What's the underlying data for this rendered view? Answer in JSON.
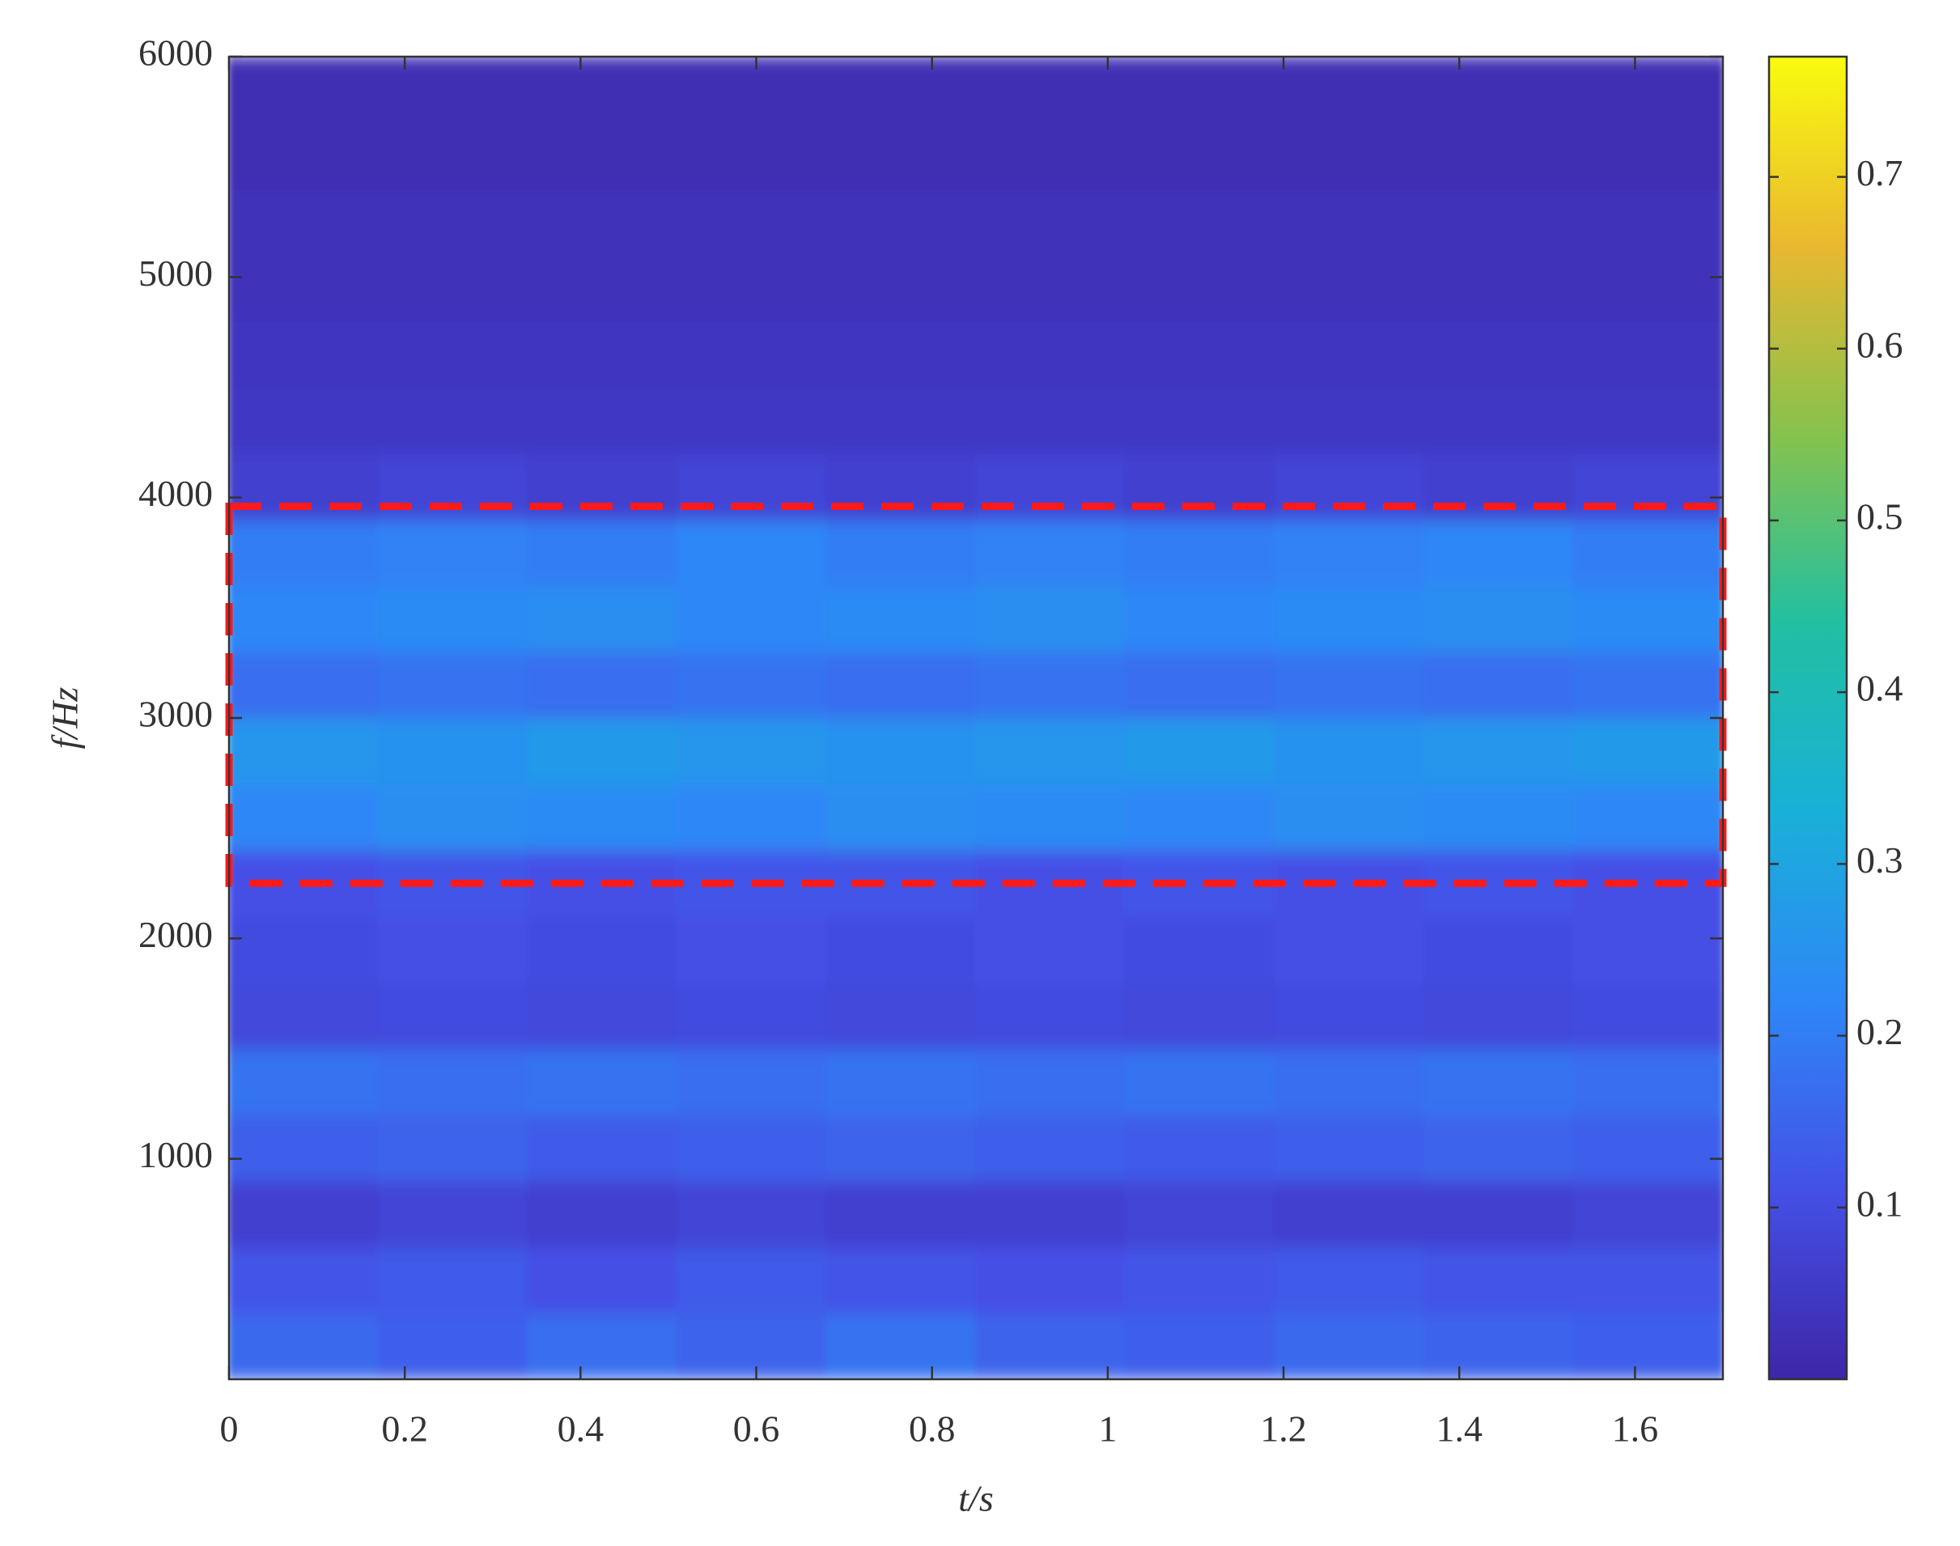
{
  "chart_data": {
    "type": "heatmap",
    "xlabel": "t/s",
    "ylabel": "f/Hz",
    "xlim": [
      0,
      1.7
    ],
    "xticks": [
      0,
      0.2,
      0.4,
      0.6,
      0.8,
      1,
      1.2,
      1.4,
      1.6
    ],
    "ylim": [
      0,
      6000
    ],
    "yticks": [
      1000,
      2000,
      3000,
      4000,
      5000,
      6000
    ],
    "xbins": [
      0,
      0.17,
      0.34,
      0.51,
      0.68,
      0.85,
      1.02,
      1.19,
      1.36,
      1.53,
      1.7
    ],
    "ybins": [
      0,
      300,
      600,
      900,
      1200,
      1500,
      1800,
      2100,
      2400,
      2700,
      3000,
      3300,
      3600,
      3900,
      4200,
      4500,
      4800,
      5100,
      5400,
      5700,
      6000
    ],
    "z": [
      [
        0.16,
        0.14,
        0.17,
        0.15,
        0.18,
        0.15,
        0.14,
        0.16,
        0.15,
        0.14
      ],
      [
        0.12,
        0.13,
        0.11,
        0.13,
        0.12,
        0.11,
        0.12,
        0.13,
        0.12,
        0.12
      ],
      [
        0.07,
        0.08,
        0.07,
        0.08,
        0.07,
        0.07,
        0.08,
        0.07,
        0.07,
        0.08
      ],
      [
        0.14,
        0.15,
        0.13,
        0.14,
        0.15,
        0.14,
        0.13,
        0.14,
        0.15,
        0.14
      ],
      [
        0.18,
        0.17,
        0.18,
        0.17,
        0.18,
        0.17,
        0.18,
        0.17,
        0.18,
        0.17
      ],
      [
        0.09,
        0.1,
        0.09,
        0.1,
        0.09,
        0.1,
        0.09,
        0.1,
        0.09,
        0.1
      ],
      [
        0.1,
        0.11,
        0.1,
        0.11,
        0.1,
        0.11,
        0.1,
        0.11,
        0.1,
        0.11
      ],
      [
        0.11,
        0.12,
        0.11,
        0.12,
        0.12,
        0.11,
        0.12,
        0.11,
        0.12,
        0.11
      ],
      [
        0.22,
        0.24,
        0.23,
        0.22,
        0.24,
        0.23,
        0.22,
        0.24,
        0.23,
        0.22
      ],
      [
        0.26,
        0.25,
        0.27,
        0.26,
        0.25,
        0.26,
        0.27,
        0.25,
        0.26,
        0.27
      ],
      [
        0.17,
        0.18,
        0.17,
        0.18,
        0.17,
        0.18,
        0.17,
        0.18,
        0.17,
        0.18
      ],
      [
        0.22,
        0.23,
        0.24,
        0.22,
        0.23,
        0.24,
        0.22,
        0.23,
        0.24,
        0.23
      ],
      [
        0.2,
        0.21,
        0.2,
        0.22,
        0.2,
        0.21,
        0.2,
        0.21,
        0.22,
        0.2
      ],
      [
        0.07,
        0.08,
        0.07,
        0.08,
        0.07,
        0.08,
        0.07,
        0.08,
        0.07,
        0.08
      ],
      [
        0.05,
        0.05,
        0.05,
        0.05,
        0.05,
        0.05,
        0.05,
        0.05,
        0.05,
        0.05
      ],
      [
        0.04,
        0.04,
        0.04,
        0.04,
        0.04,
        0.04,
        0.04,
        0.04,
        0.04,
        0.04
      ],
      [
        0.03,
        0.03,
        0.03,
        0.03,
        0.03,
        0.03,
        0.03,
        0.03,
        0.03,
        0.03
      ],
      [
        0.03,
        0.03,
        0.03,
        0.03,
        0.03,
        0.03,
        0.03,
        0.03,
        0.03,
        0.03
      ],
      [
        0.02,
        0.02,
        0.02,
        0.02,
        0.02,
        0.02,
        0.02,
        0.02,
        0.02,
        0.02
      ],
      [
        0.02,
        0.02,
        0.02,
        0.02,
        0.02,
        0.02,
        0.02,
        0.02,
        0.02,
        0.02
      ]
    ],
    "colormap": [
      "#3e26a8",
      "#4450e6",
      "#2e87f7",
      "#19b0d8",
      "#21c0a2",
      "#86c24d",
      "#e9b830",
      "#f9fb0e"
    ],
    "clim": [
      0,
      0.77
    ],
    "cticks": [
      0.1,
      0.2,
      0.3,
      0.4,
      0.5,
      0.6,
      0.7
    ],
    "highlight": {
      "x": [
        0,
        1.7
      ],
      "y": [
        2250,
        3960
      ],
      "color": "#ff1a1a"
    }
  }
}
